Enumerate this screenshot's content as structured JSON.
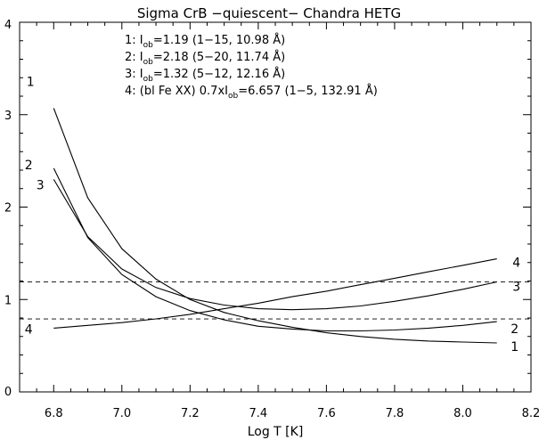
{
  "chart_data": {
    "type": "line",
    "title": "Sigma CrB −quiescent− Chandra HETG",
    "xlabel": "Log T [K]",
    "ylabel": "",
    "xlim": [
      6.7,
      8.2
    ],
    "ylim": [
      0,
      4
    ],
    "x_ticks": [
      6.8,
      7.0,
      7.2,
      7.4,
      7.6,
      7.8,
      8.0,
      8.2
    ],
    "y_ticks": [
      0,
      1,
      2,
      3,
      4
    ],
    "grid": false,
    "legend": {
      "placement": "top-center",
      "entries": [
        {
          "prefix": "1: I",
          "sub": "ob",
          "rest": "=1.19 (1−15, 10.98 Å)"
        },
        {
          "prefix": "2: I",
          "sub": "ob",
          "rest": "=2.18 (5−20, 11.74 Å)"
        },
        {
          "prefix": "3: I",
          "sub": "ob",
          "rest": "=1.32 (5−12, 12.16 Å)"
        },
        {
          "prefix": "4: (bl Fe XX) 0.7xI",
          "sub": "ob",
          "rest": "=6.657 (1−5, 132.91 Å)"
        }
      ]
    },
    "series": [
      {
        "label": "1",
        "x": [
          6.8,
          6.9,
          7.0,
          7.1,
          7.2,
          7.3,
          7.4,
          7.5,
          7.6,
          7.7,
          7.8,
          7.9,
          8.0,
          8.1
        ],
        "values": [
          3.07,
          2.1,
          1.55,
          1.22,
          1.0,
          0.86,
          0.77,
          0.7,
          0.64,
          0.6,
          0.57,
          0.55,
          0.54,
          0.53
        ]
      },
      {
        "label": "2",
        "x": [
          6.8,
          6.9,
          7.0,
          7.1,
          7.2,
          7.3,
          7.4,
          7.5,
          7.6,
          7.7,
          7.8,
          7.9,
          8.0,
          8.1
        ],
        "values": [
          2.42,
          1.67,
          1.27,
          1.03,
          0.88,
          0.78,
          0.71,
          0.68,
          0.66,
          0.66,
          0.67,
          0.69,
          0.72,
          0.76
        ]
      },
      {
        "label": "3",
        "x": [
          6.8,
          6.9,
          7.0,
          7.1,
          7.2,
          7.3,
          7.4,
          7.5,
          7.6,
          7.7,
          7.8,
          7.9,
          8.0,
          8.1
        ],
        "values": [
          2.3,
          1.68,
          1.33,
          1.13,
          1.01,
          0.94,
          0.9,
          0.89,
          0.9,
          0.93,
          0.98,
          1.04,
          1.11,
          1.19
        ]
      },
      {
        "label": "4",
        "x": [
          6.8,
          6.9,
          7.0,
          7.1,
          7.2,
          7.3,
          7.4,
          7.5,
          7.6,
          7.7,
          7.8,
          7.9,
          8.0,
          8.1
        ],
        "values": [
          0.69,
          0.72,
          0.75,
          0.79,
          0.84,
          0.9,
          0.96,
          1.03,
          1.09,
          1.16,
          1.23,
          1.3,
          1.37,
          1.44
        ]
      }
    ],
    "reference_lines": [
      {
        "y": 1.19,
        "style": "dashed"
      },
      {
        "y": 0.79,
        "style": "dashed"
      }
    ]
  }
}
